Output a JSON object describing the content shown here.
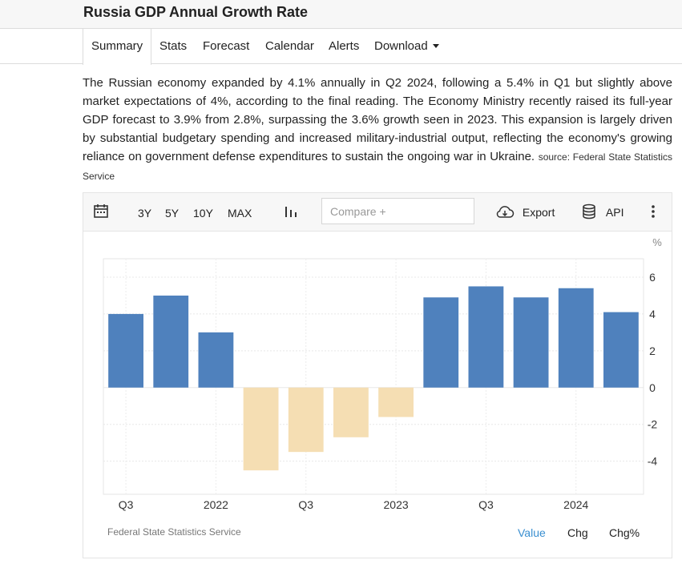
{
  "header": {
    "title": "Russia GDP Annual Growth Rate"
  },
  "tabs": [
    {
      "label": "Summary"
    },
    {
      "label": "Stats"
    },
    {
      "label": "Forecast"
    },
    {
      "label": "Calendar"
    },
    {
      "label": "Alerts"
    },
    {
      "label": "Download"
    }
  ],
  "description": {
    "text": "The Russian economy expanded by 4.1% annually in Q2 2024, following a 5.4% in Q1 but slightly above market expectations of 4%, according to the final reading. The Economy Ministry recently raised its full-year GDP forecast to 3.9% from 2.8%, surpassing the 3.6% growth seen in 2023. This expansion is largely driven by substantial budgetary spending and increased military-industrial output, reflecting the economy's growing reliance on government defense expenditures to sustain the ongoing war in Ukraine.",
    "source": "source: Federal State Statistics Service"
  },
  "toolbar": {
    "ranges": [
      "3Y",
      "5Y",
      "10Y",
      "MAX"
    ],
    "compare_placeholder": "Compare +",
    "export_label": "Export",
    "api_label": "API"
  },
  "footer": {
    "source": "Federal State Statistics Service",
    "views": [
      "Value",
      "Chg",
      "Chg%"
    ]
  },
  "colors": {
    "positive": "#4f81bd",
    "negative": "#f5deb3",
    "accent": "#3a8fd0"
  },
  "chart_data": {
    "type": "bar",
    "title": "Russia GDP Annual Growth Rate",
    "ylabel": "%",
    "unit_label": "%",
    "categories": [
      "2021 Q3",
      "2021 Q4",
      "2022 Q1",
      "2022 Q2",
      "2022 Q3",
      "2022 Q4",
      "2023 Q1",
      "2023 Q2",
      "2023 Q3",
      "2023 Q4",
      "2024 Q1",
      "2024 Q2"
    ],
    "values": [
      4.0,
      5.0,
      3.0,
      -4.5,
      -3.5,
      -2.7,
      -1.6,
      4.9,
      5.5,
      4.9,
      5.4,
      4.1
    ],
    "xtick_labels": [
      {
        "index": 0,
        "label": "Q3"
      },
      {
        "index": 2,
        "label": "2022"
      },
      {
        "index": 4,
        "label": "Q3"
      },
      {
        "index": 6,
        "label": "2023"
      },
      {
        "index": 8,
        "label": "Q3"
      },
      {
        "index": 10,
        "label": "2024"
      }
    ],
    "yticks": [
      6,
      4,
      2,
      0,
      -2,
      -4
    ],
    "ylim": [
      -5.8,
      7
    ],
    "grid": true,
    "legend": "none"
  }
}
